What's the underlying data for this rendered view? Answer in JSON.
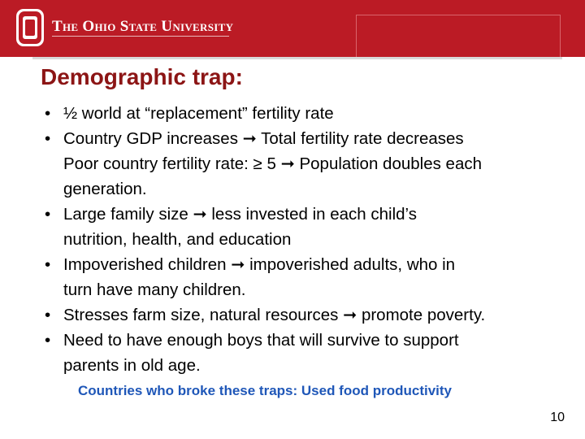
{
  "header": {
    "university_name": "The Ohio State University",
    "logo_letter": "O",
    "brand_color": "#bb1b25"
  },
  "slide": {
    "title": "Demographic trap:",
    "title_color": "#8c1515",
    "bullet_glyph": "•",
    "bullets": [
      [
        "½ world at “replacement” fertility rate"
      ],
      [
        "Country GDP increases ➞ Total fertility rate decreases",
        "Poor country fertility rate: ≥ 5 ➞ Population doubles each",
        "generation."
      ],
      [
        "Large family size ➞ less invested in each child’s",
        "nutrition, health, and education"
      ],
      [
        "Impoverished children ➞ impoverished adults, who in",
        "turn have many children."
      ],
      [
        "Stresses farm size, natural resources ➞ promote poverty."
      ],
      [
        "Need to have enough boys that will survive to support",
        "parents in old age."
      ]
    ],
    "footer_note": "Countries who broke these traps: Used food productivity",
    "footer_note_color": "#1f57b8",
    "page_number": "10"
  }
}
